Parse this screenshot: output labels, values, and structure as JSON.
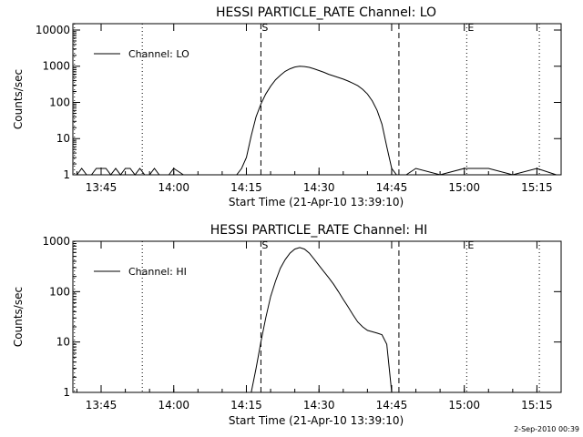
{
  "chart_data": [
    {
      "type": "line",
      "title": "HESSI PARTICLE_RATE Channel: LO",
      "xlabel": "Start Time (21-Apr-10 13:39:10)",
      "ylabel": "Counts/sec",
      "yscale": "log",
      "ylim": [
        1,
        15000
      ],
      "xlim": [
        "13:39:10",
        "15:20:00"
      ],
      "xticks": [
        "13:45",
        "14:00",
        "14:15",
        "14:30",
        "14:45",
        "15:00",
        "15:15"
      ],
      "yticks": [
        "1",
        "10",
        "100",
        "1000",
        "10000"
      ],
      "legend": {
        "position": "top-left",
        "entries": [
          "Channel: LO"
        ]
      },
      "markers": [
        {
          "label": "",
          "time": "13:39:30",
          "style": "dotted"
        },
        {
          "label": "S",
          "time": "14:18:00",
          "style": "dashed"
        },
        {
          "label": "",
          "time": "13:53:30",
          "style": "dotted"
        },
        {
          "label": "",
          "time": "14:46:30",
          "style": "dashed"
        },
        {
          "label": "E",
          "time": "15:00:30",
          "style": "dotted"
        },
        {
          "label": "",
          "time": "15:15:30",
          "style": "dotted"
        }
      ],
      "series": [
        {
          "name": "Channel: LO",
          "x": [
            "13:40:00",
            "13:41:00",
            "13:42:00",
            "13:43:00",
            "13:44:00",
            "13:45:00",
            "13:46:00",
            "13:47:00",
            "13:48:00",
            "13:49:00",
            "13:50:00",
            "13:51:00",
            "13:52:00",
            "13:53:00",
            "13:54:00",
            "13:55:00",
            "13:56:00",
            "13:57:00",
            "13:58:00",
            "13:59:00",
            "14:00:00",
            "14:02:00",
            "14:05:00",
            "14:08:00",
            "14:12:00",
            "14:13:00",
            "14:14:00",
            "14:15:00",
            "14:16:00",
            "14:17:00",
            "14:18:00",
            "14:19:00",
            "14:20:00",
            "14:21:00",
            "14:22:00",
            "14:23:00",
            "14:24:00",
            "14:25:00",
            "14:26:00",
            "14:27:00",
            "14:28:00",
            "14:29:00",
            "14:30:00",
            "14:31:00",
            "14:32:00",
            "14:33:00",
            "14:34:00",
            "14:35:00",
            "14:36:00",
            "14:37:00",
            "14:38:00",
            "14:39:00",
            "14:40:00",
            "14:41:00",
            "14:42:00",
            "14:43:00",
            "14:44:00",
            "14:45:00",
            "14:46:00",
            "14:48:00",
            "14:50:00",
            "14:55:00",
            "15:00:00",
            "15:05:00",
            "15:10:00",
            "15:15:00",
            "15:19:00"
          ],
          "y": [
            1,
            1.5,
            1,
            1,
            1.5,
            1.5,
            1.5,
            1,
            1.5,
            1,
            1.5,
            1.5,
            1,
            1.5,
            1,
            1,
            1.5,
            1,
            1,
            1,
            1.5,
            1,
            1,
            1,
            1,
            1,
            1.5,
            3,
            12,
            40,
            90,
            170,
            280,
            420,
            560,
            720,
            850,
            950,
            1000,
            980,
            930,
            850,
            760,
            680,
            600,
            540,
            490,
            440,
            390,
            340,
            290,
            230,
            170,
            110,
            60,
            25,
            6,
            1.5,
            1,
            1,
            1.5,
            1,
            1.5,
            1.5,
            1,
            1.5,
            1
          ]
        }
      ]
    },
    {
      "type": "line",
      "title": "HESSI PARTICLE_RATE Channel: HI",
      "xlabel": "Start Time (21-Apr-10 13:39:10)",
      "ylabel": "Counts/sec",
      "yscale": "log",
      "ylim": [
        1,
        1000
      ],
      "xlim": [
        "13:39:10",
        "15:20:00"
      ],
      "xticks": [
        "13:45",
        "14:00",
        "14:15",
        "14:30",
        "14:45",
        "15:00",
        "15:15"
      ],
      "yticks": [
        "1",
        "10",
        "100",
        "1000"
      ],
      "legend": {
        "position": "top-left",
        "entries": [
          "Channel: HI"
        ]
      },
      "markers": [
        {
          "label": "",
          "time": "13:39:30",
          "style": "dotted"
        },
        {
          "label": "S",
          "time": "14:18:00",
          "style": "dashed"
        },
        {
          "label": "",
          "time": "13:53:30",
          "style": "dotted"
        },
        {
          "label": "",
          "time": "14:46:30",
          "style": "dashed"
        },
        {
          "label": "E",
          "time": "15:00:30",
          "style": "dotted"
        },
        {
          "label": "",
          "time": "15:15:30",
          "style": "dotted"
        }
      ],
      "series": [
        {
          "name": "Channel: HI",
          "x": [
            "14:16:00",
            "14:17:00",
            "14:18:00",
            "14:19:00",
            "14:20:00",
            "14:21:00",
            "14:22:00",
            "14:23:00",
            "14:24:00",
            "14:25:00",
            "14:26:00",
            "14:27:00",
            "14:28:00",
            "14:29:00",
            "14:30:00",
            "14:31:00",
            "14:32:00",
            "14:33:00",
            "14:34:00",
            "14:35:00",
            "14:36:00",
            "14:37:00",
            "14:38:00",
            "14:39:00",
            "14:40:00",
            "14:41:00",
            "14:42:00",
            "14:43:00",
            "14:44:00",
            "14:44:30",
            "14:45:00"
          ],
          "y": [
            1,
            3,
            10,
            30,
            80,
            160,
            290,
            430,
            580,
            700,
            750,
            700,
            580,
            440,
            330,
            250,
            190,
            140,
            100,
            70,
            50,
            35,
            25,
            20,
            17,
            16,
            15,
            14,
            9,
            3,
            1
          ]
        }
      ]
    }
  ],
  "footer": {
    "timestamp": "2-Sep-2010 00:39"
  }
}
